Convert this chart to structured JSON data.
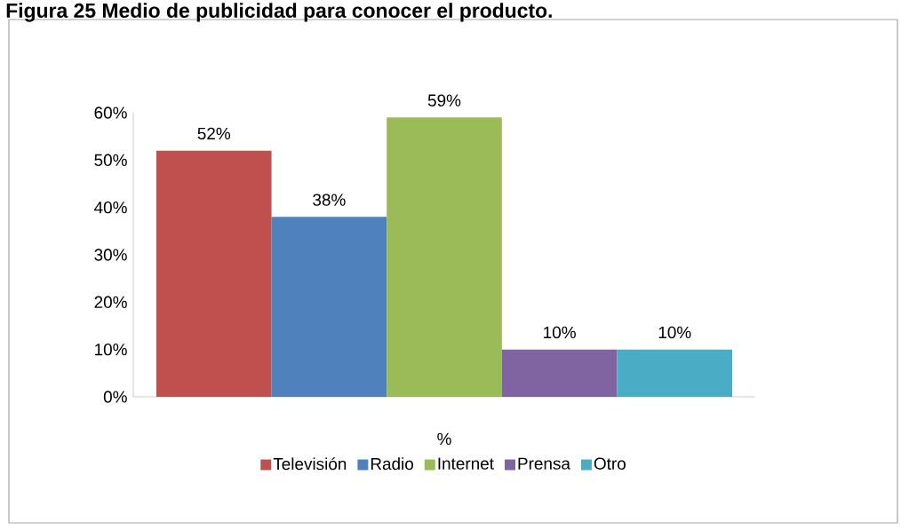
{
  "chart_data": {
    "type": "bar",
    "title": "Figura 25 Medio de publicidad para conocer el producto.",
    "categories": [
      "%"
    ],
    "series": [
      {
        "name": "Televisión",
        "color": "#c0504d",
        "values": [
          52
        ],
        "value_labels": [
          "52%"
        ]
      },
      {
        "name": "Radio",
        "color": "#4f81bd",
        "values": [
          38
        ],
        "value_labels": [
          "38%"
        ]
      },
      {
        "name": "Internet",
        "color": "#9bbb59",
        "values": [
          59
        ],
        "value_labels": [
          "59%"
        ]
      },
      {
        "name": "Prensa",
        "color": "#8064a2",
        "values": [
          10
        ],
        "value_labels": [
          "10%"
        ]
      },
      {
        "name": "Otro",
        "color": "#4bacc6",
        "values": [
          10
        ],
        "value_labels": [
          "10%"
        ]
      }
    ],
    "ylim": [
      0,
      60
    ],
    "yticks": [
      {
        "value": 0,
        "label": "0%"
      },
      {
        "value": 10,
        "label": "10%"
      },
      {
        "value": 20,
        "label": "20%"
      },
      {
        "value": 30,
        "label": "30%"
      },
      {
        "value": 40,
        "label": "40%"
      },
      {
        "value": 50,
        "label": "50%"
      },
      {
        "value": 60,
        "label": "60%"
      }
    ],
    "legend": "bottom"
  }
}
